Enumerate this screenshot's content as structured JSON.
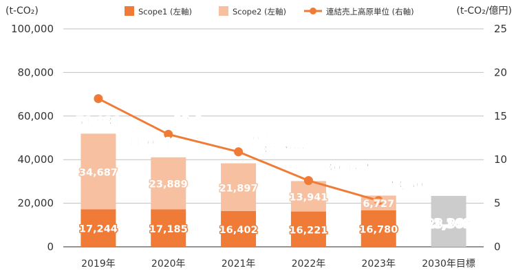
{
  "chart_data": {
    "type": "bar",
    "categories": [
      "2019年",
      "2020年",
      "2021年",
      "2022年",
      "2023年",
      "2030年目標"
    ],
    "left_unit": "(t-CO₂)",
    "right_unit": "(t-CO₂/億円)",
    "left_ylim": [
      0,
      100000
    ],
    "left_ticks": [
      "0",
      "20,000",
      "40,000",
      "60,000",
      "80,000",
      "100,000"
    ],
    "right_ylim": [
      0,
      25
    ],
    "right_ticks": [
      "0",
      "5",
      "10",
      "15",
      "20",
      "25"
    ],
    "grid": true,
    "legend_position": "top",
    "series": [
      {
        "name": "Scope1 (左軸)",
        "kind": "stacked-bar",
        "axis": "left",
        "color": "#ef7b36",
        "values": [
          17244,
          17185,
          16402,
          16221,
          16780,
          null
        ],
        "labels": [
          "17,244",
          "17,185",
          "16,402",
          "16,221",
          "16,780",
          ""
        ]
      },
      {
        "name": "Scope2 (左軸)",
        "kind": "stacked-bar",
        "axis": "left",
        "color": "#f7c0a0",
        "values": [
          34687,
          23889,
          21897,
          13941,
          6727,
          null
        ],
        "labels": [
          "34,687",
          "23,889",
          "21,897",
          "13,941",
          "6,727",
          ""
        ]
      },
      {
        "name": "2030年目標",
        "kind": "bar",
        "axis": "left",
        "color": "#cccccc",
        "values": [
          null,
          null,
          null,
          null,
          null,
          23369
        ],
        "labels": [
          "",
          "",
          "",
          "",
          "",
          ""
        ]
      },
      {
        "name": "連結売上高原単位 (右軸)",
        "kind": "line",
        "axis": "right",
        "color": "#ef7b36",
        "values": [
          17,
          12.9,
          10.9,
          7.6,
          5.3,
          null
        ],
        "labels": [
          "17",
          "12.9",
          "10.9",
          "7.6",
          "5.3",
          ""
        ]
      }
    ],
    "totals": [
      51931,
      41074,
      38299,
      30162,
      23507,
      23369
    ],
    "total_labels": [
      "51,931",
      "41,074",
      "38,299",
      "30,162",
      "23,507",
      "23,369"
    ]
  }
}
